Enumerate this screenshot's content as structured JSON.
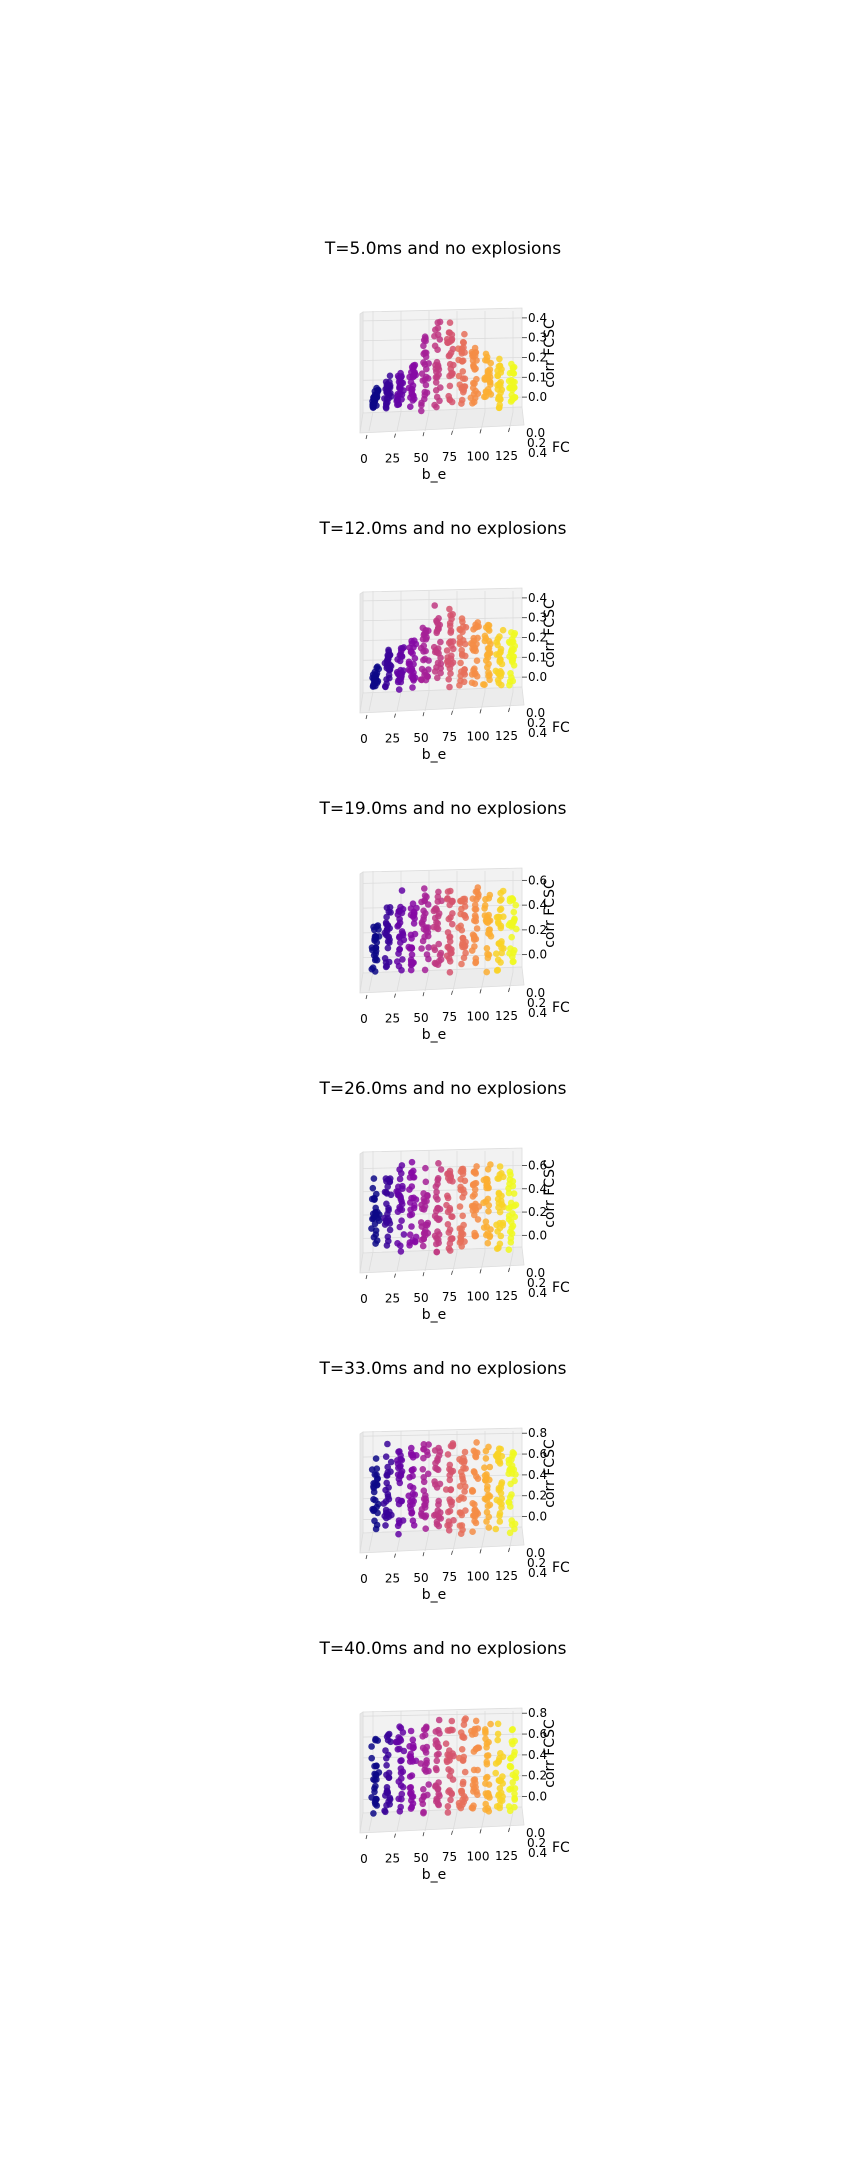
{
  "chart_data": [
    {
      "type": "scatter3d",
      "title": "T=5.0ms and no explosions",
      "xlabel": "b_e",
      "ylabel": "FC",
      "zlabel": "corr FCSC",
      "xticks": [
        "0",
        "25",
        "50",
        "75",
        "100",
        "125"
      ],
      "yticks": [
        "0.0",
        "0.2",
        "0.4"
      ],
      "zticks": [
        "0.0",
        "0.1",
        "0.2",
        "0.3",
        "0.4"
      ],
      "xlim": [
        0,
        125
      ],
      "zlim": [
        -0.05,
        0.45
      ],
      "colormap": "plasma",
      "z_max_by_b_e": [
        0.05,
        0.12,
        0.14,
        0.2,
        0.36,
        0.42,
        0.4,
        0.34,
        0.3,
        0.26,
        0.24,
        0.2
      ]
    },
    {
      "type": "scatter3d",
      "title": "T=12.0ms and no explosions",
      "xlabel": "b_e",
      "ylabel": "FC",
      "zlabel": "corr FCSC",
      "xticks": [
        "0",
        "25",
        "50",
        "75",
        "100",
        "125"
      ],
      "yticks": [
        "0.0",
        "0.2",
        "0.4"
      ],
      "zticks": [
        "0.0",
        "0.1",
        "0.2",
        "0.3",
        "0.4"
      ],
      "xlim": [
        0,
        125
      ],
      "zlim": [
        -0.05,
        0.45
      ],
      "colormap": "plasma",
      "z_max_by_b_e": [
        0.06,
        0.15,
        0.18,
        0.22,
        0.3,
        0.42,
        0.4,
        0.34,
        0.3,
        0.28,
        0.27,
        0.27
      ]
    },
    {
      "type": "scatter3d",
      "title": "T=19.0ms and no explosions",
      "xlabel": "b_e",
      "ylabel": "FC",
      "zlabel": "corr FCSC",
      "xticks": [
        "0",
        "25",
        "50",
        "75",
        "100",
        "125"
      ],
      "yticks": [
        "0.0",
        "0.2",
        "0.4"
      ],
      "zticks": [
        "0.0",
        "0.2",
        "0.4",
        "0.6"
      ],
      "xlim": [
        0,
        125
      ],
      "zlim": [
        -0.1,
        0.7
      ],
      "colormap": "plasma",
      "z_max_by_b_e": [
        0.3,
        0.45,
        0.52,
        0.55,
        0.56,
        0.57,
        0.57,
        0.56,
        0.56,
        0.55,
        0.55,
        0.54
      ]
    },
    {
      "type": "scatter3d",
      "title": "T=26.0ms and no explosions",
      "xlabel": "b_e",
      "ylabel": "FC",
      "zlabel": "corr FCSC",
      "xticks": [
        "0",
        "25",
        "50",
        "75",
        "100",
        "125"
      ],
      "yticks": [
        "0.0",
        "0.2",
        "0.4"
      ],
      "zticks": [
        "0.0",
        "0.2",
        "0.4",
        "0.6"
      ],
      "xlim": [
        0,
        125
      ],
      "zlim": [
        -0.1,
        0.75
      ],
      "colormap": "plasma",
      "z_max_by_b_e": [
        0.55,
        0.62,
        0.65,
        0.66,
        0.67,
        0.67,
        0.67,
        0.67,
        0.66,
        0.66,
        0.66,
        0.65
      ]
    },
    {
      "type": "scatter3d",
      "title": "T=33.0ms and no explosions",
      "xlabel": "b_e",
      "ylabel": "FC",
      "zlabel": "corr FCSC",
      "xticks": [
        "0",
        "25",
        "50",
        "75",
        "100",
        "125"
      ],
      "yticks": [
        "0.0",
        "0.2",
        "0.4"
      ],
      "zticks": [
        "0.0",
        "0.2",
        "0.4",
        "0.6",
        "0.8"
      ],
      "xlim": [
        0,
        125
      ],
      "zlim": [
        -0.1,
        0.85
      ],
      "colormap": "plasma",
      "z_max_by_b_e": [
        0.6,
        0.7,
        0.74,
        0.76,
        0.77,
        0.77,
        0.77,
        0.76,
        0.75,
        0.74,
        0.74,
        0.73
      ]
    },
    {
      "type": "scatter3d",
      "title": "T=40.0ms and no explosions",
      "xlabel": "b_e",
      "ylabel": "FC",
      "zlabel": "corr FCSC",
      "xticks": [
        "0",
        "25",
        "50",
        "75",
        "100",
        "125"
      ],
      "yticks": [
        "0.0",
        "0.2",
        "0.4"
      ],
      "zticks": [
        "0.0",
        "0.2",
        "0.4",
        "0.6",
        "0.8"
      ],
      "xlim": [
        0,
        125
      ],
      "zlim": [
        -0.1,
        0.85
      ],
      "colormap": "plasma",
      "z_max_by_b_e": [
        0.62,
        0.72,
        0.75,
        0.77,
        0.78,
        0.78,
        0.78,
        0.77,
        0.77,
        0.76,
        0.76,
        0.75
      ]
    }
  ]
}
